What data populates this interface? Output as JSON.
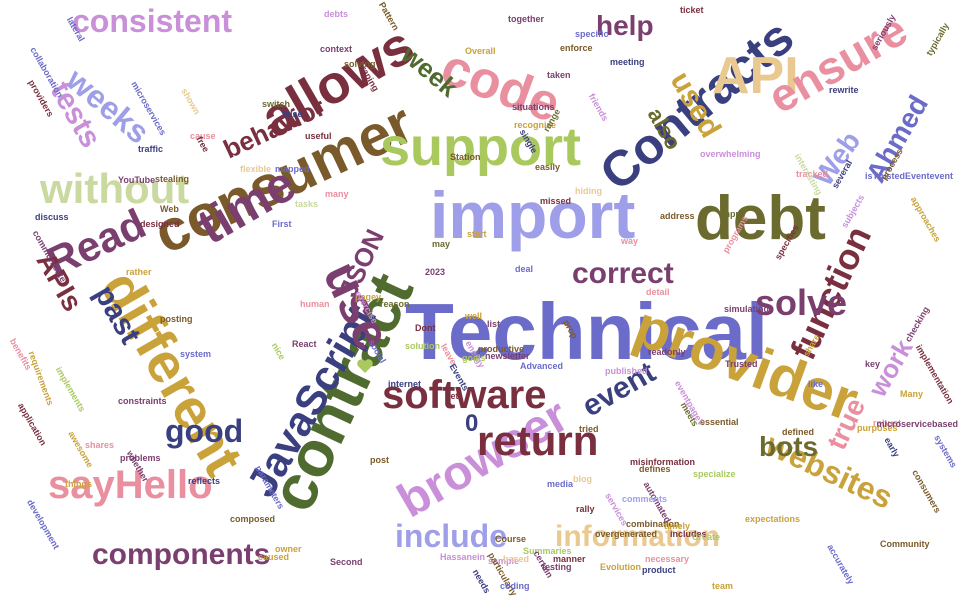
{
  "colors": {
    "background": "#ffffff",
    "slate_blue": "#6b6bc9",
    "olive": "#6b6b2f",
    "wine": "#7a2f3f",
    "pink": "#e98f9f",
    "yellow_green": "#a9c95f",
    "gold": "#c9a23a",
    "dark_green": "#4f6b2f",
    "navy": "#3a3f7f",
    "orchid": "#c98fd9",
    "brown": "#7a5a2a",
    "plum": "#7a3f6f",
    "tan": "#e9c98f",
    "light_green": "#c9d99f",
    "lavender": "#9f9fe9",
    "rose": "#c95f7f"
  },
  "words": [
    {
      "text": "Technical",
      "color": "#6b6bc9"
    },
    {
      "text": "import",
      "color": "#9f9fe9"
    },
    {
      "text": "contract",
      "color": "#4f6b2f"
    },
    {
      "text": "consumer",
      "color": "#7a5a2a"
    },
    {
      "text": "provider",
      "color": "#c9a23a"
    },
    {
      "text": "allows",
      "color": "#7a2f3f"
    },
    {
      "text": "support",
      "color": "#a9c95f"
    },
    {
      "text": "Contracts",
      "color": "#3a3f7f"
    },
    {
      "text": "debt",
      "color": "#6b6b2f"
    },
    {
      "text": "code",
      "color": "#e98f9f"
    },
    {
      "text": "API",
      "color": "#e9c98f"
    },
    {
      "text": "ensure",
      "color": "#e98f9f"
    },
    {
      "text": "different",
      "color": "#c9a23a"
    },
    {
      "text": "time",
      "color": "#7a3f6f"
    },
    {
      "text": "JavaScript",
      "color": "#3a3f7f"
    },
    {
      "text": "browser",
      "color": "#c98fd9"
    },
    {
      "text": "use",
      "color": "#7a3f6f"
    },
    {
      "text": "software",
      "color": "#7a2f3f"
    },
    {
      "text": "return",
      "color": "#7a2f3f"
    },
    {
      "text": "sayHello",
      "color": "#e98f9f"
    },
    {
      "text": "components",
      "color": "#7a3f6f"
    },
    {
      "text": "information",
      "color": "#e9c98f"
    },
    {
      "text": "without",
      "color": "#c9d99f"
    },
    {
      "text": "consistent",
      "color": "#c98fd9"
    },
    {
      "text": "Read",
      "color": "#7a3f6f"
    },
    {
      "text": "function",
      "color": "#7a2f3f"
    },
    {
      "text": "solve",
      "color": "#7a3f6f"
    },
    {
      "text": "correct",
      "color": "#7a3f6f"
    },
    {
      "text": "websites",
      "color": "#c9a23a"
    },
    {
      "text": "include",
      "color": "#9f9fe9"
    },
    {
      "text": "event",
      "color": "#3a3f7f"
    },
    {
      "text": "good",
      "color": "#3a3f7f"
    },
    {
      "text": "bots",
      "color": "#6b6b2f"
    },
    {
      "text": "work",
      "color": "#c98fd9"
    },
    {
      "text": "true",
      "color": "#e98f9f"
    },
    {
      "text": "past",
      "color": "#3a3f7f"
    },
    {
      "text": "APIs",
      "color": "#7a2f3f"
    },
    {
      "text": "weeks",
      "color": "#9f9fe9"
    },
    {
      "text": "tests",
      "color": "#c98fd9"
    },
    {
      "text": "week",
      "color": "#4f6b2f"
    },
    {
      "text": "help",
      "color": "#7a3f6f"
    },
    {
      "text": "used",
      "color": "#c9a23a"
    },
    {
      "text": "also",
      "color": "#6b6b2f"
    },
    {
      "text": "behavior",
      "color": "#7a2f3f"
    },
    {
      "text": "Web",
      "color": "#9f9fe9"
    },
    {
      "text": "Ahmed",
      "color": "#6b6bc9"
    },
    {
      "text": "JSON",
      "color": "#7a3f6f"
    },
    {
      "text": "0",
      "color": "#3a3f7f"
    },
    {
      "text": "nice",
      "color": "#a9c95f"
    },
    {
      "text": "Station",
      "color": "#7a5a2a"
    },
    {
      "text": "scraping",
      "color": "#7a2f3f"
    },
    {
      "text": "Pattern",
      "color": "#7a5a2a"
    },
    {
      "text": "ticket",
      "color": "#7a2f3f"
    },
    {
      "text": "meeting",
      "color": "#3a3f7f"
    },
    {
      "text": "microservices",
      "color": "#6b6bc9"
    },
    {
      "text": "collaboration",
      "color": "#6b6bc9"
    },
    {
      "text": "discuss",
      "color": "#3a3f7f"
    },
    {
      "text": "communicate",
      "color": "#7a3f6f"
    },
    {
      "text": "benefits",
      "color": "#e98f9f"
    },
    {
      "text": "requirements",
      "color": "#c9a23a"
    },
    {
      "text": "application",
      "color": "#7a2f3f"
    },
    {
      "text": "awesome",
      "color": "#c9a23a"
    },
    {
      "text": "implements",
      "color": "#a9c95f"
    },
    {
      "text": "development",
      "color": "#6b6bc9"
    },
    {
      "text": "Hassanein",
      "color": "#c98fd9"
    },
    {
      "text": "testing",
      "color": "#7a3f6f"
    },
    {
      "text": "newsletter",
      "color": "#7a3f6f"
    },
    {
      "text": "Course",
      "color": "#7a5a2a"
    },
    {
      "text": "energy",
      "color": "#c98fd9"
    },
    {
      "text": "productive",
      "color": "#7a5a2a"
    },
    {
      "text": "published",
      "color": "#c98fd9"
    },
    {
      "text": "simulating",
      "color": "#7a3f6f"
    },
    {
      "text": "programs",
      "color": "#e98f9f"
    },
    {
      "text": "Trusted",
      "color": "#7a3f6f"
    },
    {
      "text": "share",
      "color": "#c9a23a"
    },
    {
      "text": "consumers",
      "color": "#7a5a2a"
    },
    {
      "text": "systems",
      "color": "#6b6bc9"
    },
    {
      "text": "expectations",
      "color": "#c9a23a"
    },
    {
      "text": "necessary",
      "color": "#e98f9f"
    },
    {
      "text": "team",
      "color": "#c9a23a"
    },
    {
      "text": "Community",
      "color": "#7a5a2a"
    },
    {
      "text": "accurately",
      "color": "#6b6bc9"
    },
    {
      "text": "Second",
      "color": "#7a3f6f"
    },
    {
      "text": "caused",
      "color": "#c9a23a"
    },
    {
      "text": "needs",
      "color": "#3a3f7f"
    },
    {
      "text": "sample",
      "color": "#c98fd9"
    },
    {
      "text": "based",
      "color": "#e9c98f"
    },
    {
      "text": "combination",
      "color": "#7a5a2a"
    },
    {
      "text": "includes",
      "color": "#7a2f3f"
    },
    {
      "text": "timely",
      "color": "#c9a23a"
    },
    {
      "text": "automated",
      "color": "#7a3f6f"
    },
    {
      "text": "defines",
      "color": "#7a5a2a"
    },
    {
      "text": "services",
      "color": "#c98fd9"
    },
    {
      "text": "comments",
      "color": "#9f9fe9"
    },
    {
      "text": "media",
      "color": "#6b6bc9"
    },
    {
      "text": "rally",
      "color": "#7a2f3f"
    },
    {
      "text": "Summaries",
      "color": "#a9c95f"
    },
    {
      "text": "particularly",
      "color": "#7a5a2a"
    },
    {
      "text": "certain",
      "color": "#7a3f6f"
    },
    {
      "text": "composed",
      "color": "#7a5a2a"
    },
    {
      "text": "owner",
      "color": "#c9a23a"
    },
    {
      "text": "parameters",
      "color": "#6b6bc9"
    },
    {
      "text": "constraints",
      "color": "#7a3f6f"
    },
    {
      "text": "reflects",
      "color": "#3a3f7f"
    },
    {
      "text": "system",
      "color": "#6b6bc9"
    },
    {
      "text": "whether",
      "color": "#7a3f6f"
    },
    {
      "text": "shares",
      "color": "#e98f9f"
    },
    {
      "text": "things",
      "color": "#c9a23a"
    },
    {
      "text": "problems",
      "color": "#7a3f6f"
    },
    {
      "text": "reason",
      "color": "#6b6b2f"
    },
    {
      "text": "social",
      "color": "#6b6bc9"
    },
    {
      "text": "post",
      "color": "#7a5a2a"
    },
    {
      "text": "internet",
      "color": "#3a3f7f"
    },
    {
      "text": "React",
      "color": "#7a3f6f"
    },
    {
      "text": "human",
      "color": "#e98f9f"
    },
    {
      "text": "solution",
      "color": "#a9c95f"
    },
    {
      "text": "Dont",
      "color": "#7a2f3f"
    },
    {
      "text": "leave",
      "color": "#e98f9f"
    },
    {
      "text": "list",
      "color": "#7a3f6f"
    },
    {
      "text": "Advanced",
      "color": "#6b6bc9"
    },
    {
      "text": "tried",
      "color": "#7a5a2a"
    },
    {
      "text": "blog",
      "color": "#e9c98f"
    },
    {
      "text": "specialize",
      "color": "#a9c95f"
    },
    {
      "text": "misinformation",
      "color": "#7a2f3f"
    },
    {
      "text": "essential",
      "color": "#7a5a2a"
    },
    {
      "text": "meets",
      "color": "#6b6b2f"
    },
    {
      "text": "eventpageV",
      "color": "#c98fd9"
    },
    {
      "text": "defined",
      "color": "#7a5a2a"
    },
    {
      "text": "early",
      "color": "#3a3f7f"
    },
    {
      "text": "purposes",
      "color": "#c9a23a"
    },
    {
      "text": "robust",
      "color": "#e98f9f"
    },
    {
      "text": "microservicebased",
      "color": "#7a3f6f"
    },
    {
      "text": "implementation",
      "color": "#7a2f3f"
    },
    {
      "text": "isTrustedEventevent",
      "color": "#6b6bc9"
    },
    {
      "text": "process",
      "color": "#7a5a2a"
    },
    {
      "text": "rewrite",
      "color": "#3a3f7f"
    },
    {
      "text": "seriously",
      "color": "#7a3f6f"
    },
    {
      "text": "typically",
      "color": "#6b6b2f"
    },
    {
      "text": "approaches",
      "color": "#c9a23a"
    },
    {
      "text": "subjects",
      "color": "#c98fd9"
    },
    {
      "text": "specifies",
      "color": "#7a2f3f"
    },
    {
      "text": "tracked",
      "color": "#e98f9f"
    },
    {
      "text": "checking",
      "color": "#7a3f6f"
    },
    {
      "text": "several",
      "color": "#3a3f7f"
    },
    {
      "text": "interesting",
      "color": "#c9d99f"
    },
    {
      "text": "address",
      "color": "#7a5a2a"
    },
    {
      "text": "hiding",
      "color": "#e9c98f"
    },
    {
      "text": "missed",
      "color": "#7a2f3f"
    },
    {
      "text": "easily",
      "color": "#7a5a2a"
    },
    {
      "text": "situations",
      "color": "#7a3f6f"
    },
    {
      "text": "recognize",
      "color": "#c9a23a"
    },
    {
      "text": "range",
      "color": "#6b6b2f"
    },
    {
      "text": "friends",
      "color": "#c98fd9"
    },
    {
      "text": "single",
      "color": "#3a3f7f"
    },
    {
      "text": "taken",
      "color": "#7a3f6f"
    },
    {
      "text": "enforce",
      "color": "#7a5a2a"
    },
    {
      "text": "Overall",
      "color": "#c9a23a"
    },
    {
      "text": "together",
      "color": "#7a3f6f"
    },
    {
      "text": "specific",
      "color": "#6b6bc9"
    },
    {
      "text": "overwhelming",
      "color": "#c98fd9"
    },
    {
      "text": "detail",
      "color": "#e98f9f"
    },
    {
      "text": "readonly",
      "color": "#7a3f6f"
    },
    {
      "text": "prop",
      "color": "#7a5a2a"
    },
    {
      "text": "deal",
      "color": "#6b6bc9"
    },
    {
      "text": "goals",
      "color": "#a9c95f"
    },
    {
      "text": "Events",
      "color": "#3a3f7f"
    },
    {
      "text": "get",
      "color": "#7a2f3f"
    },
    {
      "text": "well",
      "color": "#c9a23a"
    },
    {
      "text": "shown",
      "color": "#e9c98f"
    },
    {
      "text": "traffic",
      "color": "#3a3f7f"
    },
    {
      "text": "stealing",
      "color": "#7a5a2a"
    },
    {
      "text": "cause",
      "color": "#e98f9f"
    },
    {
      "text": "free",
      "color": "#7a2f3f"
    },
    {
      "text": "YouTube",
      "color": "#7a3f6f"
    },
    {
      "text": "rather",
      "color": "#c9a23a"
    },
    {
      "text": "designed",
      "color": "#7a2f3f"
    },
    {
      "text": "Web",
      "color": "#7a5a2a"
    },
    {
      "text": "posting",
      "color": "#7a5a2a"
    },
    {
      "text": "First",
      "color": "#6b6bc9"
    },
    {
      "text": "pagey",
      "color": "#c9a23a"
    },
    {
      "text": "many",
      "color": "#e98f9f"
    },
    {
      "text": "tasks",
      "color": "#c9d99f"
    },
    {
      "text": "mapped",
      "color": "#6b6bc9"
    },
    {
      "text": "flexible",
      "color": "#e9c98f"
    },
    {
      "text": "useful",
      "color": "#7a2f3f"
    },
    {
      "text": "false",
      "color": "#3a3f7f"
    },
    {
      "text": "lateral",
      "color": "#6b6bc9"
    },
    {
      "text": "providers",
      "color": "#7a2f3f"
    },
    {
      "text": "may",
      "color": "#6b6b2f"
    },
    {
      "text": "2023",
      "color": "#7a3f6f"
    },
    {
      "text": "start",
      "color": "#c9a23a"
    },
    {
      "text": "switch",
      "color": "#6b6b2f"
    },
    {
      "text": "solving",
      "color": "#7a5a2a"
    },
    {
      "text": "debts",
      "color": "#c98fd9"
    },
    {
      "text": "context",
      "color": "#7a3f6f"
    },
    {
      "text": "product",
      "color": "#3a3f7f"
    },
    {
      "text": "Create",
      "color": "#a9c95f"
    },
    {
      "text": "Evolution",
      "color": "#c9a23a"
    },
    {
      "text": "manner",
      "color": "#7a2f3f"
    },
    {
      "text": "coding",
      "color": "#6b6bc9"
    },
    {
      "text": "overgenerated",
      "color": "#7a5a2a"
    },
    {
      "text": "exercise",
      "color": "#c98fd9"
    },
    {
      "text": "input",
      "color": "#6b6b2f"
    },
    {
      "text": "way",
      "color": "#e98f9f"
    },
    {
      "text": "key",
      "color": "#7a3f6f"
    },
    {
      "text": "Many",
      "color": "#c9a23a"
    },
    {
      "text": "like",
      "color": "#6b6bc9"
    },
    {
      "text": "output",
      "color": "#7a5a2a"
    },
    {
      "text": "agreed",
      "color": "#c98fd9"
    },
    {
      "text": "5",
      "color": "#7a2f3f"
    }
  ]
}
